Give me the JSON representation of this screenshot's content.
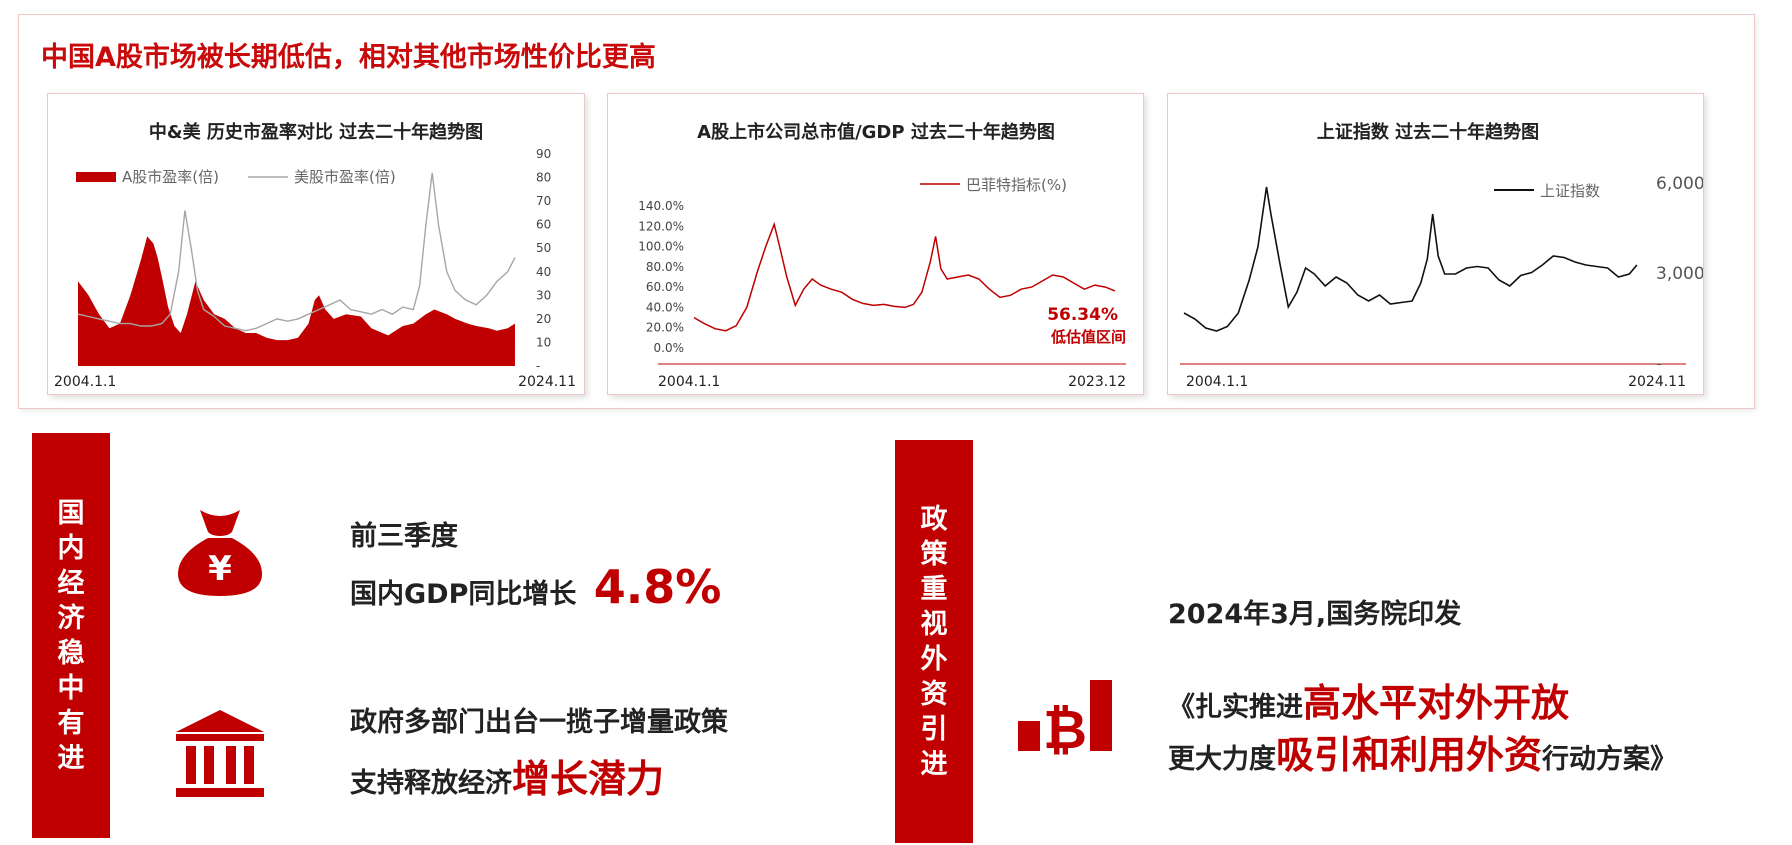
{
  "headline": "中国A股市场被长期低估，相对其他市场性价比更高",
  "colors": {
    "accent": "#c00000",
    "line_black": "#111111",
    "line_gray": "#a6a6a6"
  },
  "chart_data": [
    {
      "type": "area",
      "title": "中&美 历史市盈率对比 过去二十年趋势图",
      "xlabel": "",
      "ylabel": "",
      "x_start_label": "2004.1.1",
      "x_end_label": "2024.11",
      "y_ticks": [
        "90",
        "80",
        "70",
        "60",
        "50",
        "40",
        "30",
        "20",
        "10",
        "-"
      ],
      "ylim": [
        0,
        90
      ],
      "legend_position": "top-left",
      "series": [
        {
          "name": "A股市盈率(倍)",
          "style": "area",
          "color": "#c00000",
          "x": [
            2004.0,
            2004.5,
            2005.0,
            2005.5,
            2006.0,
            2006.5,
            2007.0,
            2007.3,
            2007.6,
            2007.8,
            2008.0,
            2008.3,
            2008.6,
            2008.9,
            2009.2,
            2009.6,
            2010.0,
            2010.5,
            2011.0,
            2011.5,
            2012.0,
            2012.5,
            2013.0,
            2013.5,
            2014.0,
            2014.5,
            2015.0,
            2015.3,
            2015.5,
            2015.8,
            2016.2,
            2016.8,
            2017.5,
            2018.0,
            2018.8,
            2019.5,
            2020.0,
            2020.6,
            2021.0,
            2021.6,
            2022.0,
            2022.6,
            2023.0,
            2023.6,
            2024.0,
            2024.5,
            2024.85
          ],
          "values": [
            36,
            30,
            22,
            16,
            18,
            30,
            45,
            55,
            52,
            46,
            38,
            25,
            17,
            14,
            22,
            36,
            28,
            22,
            20,
            16,
            14,
            14,
            12,
            11,
            11,
            12,
            18,
            28,
            30,
            24,
            20,
            22,
            21,
            16,
            13,
            17,
            18,
            22,
            24,
            22,
            20,
            18,
            17,
            16,
            15,
            16,
            18
          ]
        },
        {
          "name": "美股市盈率(倍)",
          "style": "line",
          "color": "#a6a6a6",
          "x": [
            2004.0,
            2004.5,
            2005.0,
            2005.5,
            2006.0,
            2006.5,
            2007.0,
            2007.5,
            2008.0,
            2008.4,
            2008.8,
            2009.1,
            2009.4,
            2009.7,
            2010.0,
            2010.5,
            2011.0,
            2011.5,
            2012.0,
            2012.5,
            2013.0,
            2013.5,
            2014.0,
            2014.5,
            2015.0,
            2015.5,
            2016.0,
            2016.5,
            2017.0,
            2017.5,
            2018.0,
            2018.5,
            2019.0,
            2019.5,
            2020.0,
            2020.3,
            2020.6,
            2020.9,
            2021.2,
            2021.6,
            2022.0,
            2022.5,
            2023.0,
            2023.5,
            2024.0,
            2024.5,
            2024.85
          ],
          "values": [
            22,
            21,
            20,
            19,
            18,
            18,
            17,
            17,
            18,
            22,
            40,
            66,
            50,
            32,
            24,
            21,
            17,
            16,
            15,
            16,
            18,
            20,
            19,
            20,
            22,
            24,
            26,
            28,
            24,
            23,
            22,
            24,
            22,
            25,
            24,
            34,
            60,
            82,
            60,
            40,
            32,
            28,
            26,
            30,
            36,
            40,
            46
          ]
        }
      ]
    },
    {
      "type": "line",
      "title": "A股上市公司总市值/GDP 过去二十年趋势图",
      "xlabel": "",
      "ylabel": "",
      "x_start_label": "2004.1.1",
      "x_end_label": "2023.12",
      "y_ticks": [
        "140.0%",
        "120.0%",
        "100.0%",
        "80.0%",
        "60.0%",
        "40.0%",
        "20.0%",
        "0.0%"
      ],
      "ylim": [
        0,
        140
      ],
      "legend_position": "top-right",
      "annotation": {
        "value": "56.34%",
        "text": "低估值区间"
      },
      "series": [
        {
          "name": "巴菲特指标(%)",
          "color": "#c00000",
          "x": [
            2004.0,
            2004.5,
            2005.0,
            2005.5,
            2006.0,
            2006.5,
            2007.0,
            2007.4,
            2007.8,
            2008.0,
            2008.4,
            2008.8,
            2009.2,
            2009.6,
            2010.0,
            2010.5,
            2011.0,
            2011.5,
            2012.0,
            2012.5,
            2013.0,
            2013.5,
            2014.0,
            2014.4,
            2014.8,
            2015.2,
            2015.45,
            2015.7,
            2016.0,
            2016.5,
            2017.0,
            2017.5,
            2018.0,
            2018.5,
            2019.0,
            2019.5,
            2020.0,
            2020.5,
            2021.0,
            2021.5,
            2022.0,
            2022.5,
            2023.0,
            2023.5,
            2023.95
          ],
          "values": [
            30,
            24,
            19,
            17,
            22,
            40,
            75,
            100,
            122,
            105,
            70,
            42,
            58,
            68,
            62,
            58,
            55,
            48,
            44,
            42,
            43,
            41,
            40,
            43,
            55,
            85,
            110,
            78,
            68,
            70,
            72,
            68,
            58,
            50,
            52,
            58,
            60,
            66,
            72,
            70,
            64,
            58,
            62,
            60,
            56.34
          ]
        }
      ]
    },
    {
      "type": "line",
      "title": "上证指数 过去二十年趋势图",
      "xlabel": "",
      "ylabel": "",
      "x_start_label": "2004.1.1",
      "x_end_label": "2024.11",
      "y_ticks": [
        "6,000",
        "3,000",
        "-"
      ],
      "ylim": [
        0,
        7000
      ],
      "legend_position": "top-right",
      "series": [
        {
          "name": "上证指数",
          "color": "#111111",
          "x": [
            2004.0,
            2004.5,
            2005.0,
            2005.5,
            2006.0,
            2006.5,
            2007.0,
            2007.4,
            2007.8,
            2008.0,
            2008.4,
            2008.8,
            2009.2,
            2009.6,
            2010.0,
            2010.5,
            2011.0,
            2011.5,
            2012.0,
            2012.5,
            2013.0,
            2013.5,
            2014.0,
            2014.5,
            2014.9,
            2015.2,
            2015.45,
            2015.7,
            2016.0,
            2016.5,
            2017.0,
            2017.5,
            2018.0,
            2018.5,
            2019.0,
            2019.5,
            2020.0,
            2020.5,
            2021.0,
            2021.5,
            2022.0,
            2022.5,
            2023.0,
            2023.5,
            2024.0,
            2024.5,
            2024.85
          ],
          "values": [
            1700,
            1500,
            1200,
            1100,
            1250,
            1700,
            2800,
            3900,
            5900,
            5000,
            3400,
            1900,
            2400,
            3200,
            3000,
            2600,
            2900,
            2700,
            2300,
            2100,
            2300,
            2000,
            2050,
            2100,
            2700,
            3500,
            5000,
            3600,
            3000,
            3000,
            3200,
            3250,
            3200,
            2800,
            2600,
            2950,
            3050,
            3300,
            3600,
            3550,
            3400,
            3300,
            3250,
            3200,
            2900,
            3000,
            3300
          ]
        }
      ]
    }
  ],
  "left_section": {
    "vertical_label": "国内经济稳中有进",
    "item1": {
      "line1": "前三季度",
      "line2": "国内GDP同比增长",
      "highlight": "4.8%"
    },
    "item2": {
      "line1": "政府多部门出台一揽子增量政策",
      "line2": "支持释放经济",
      "highlight": "增长潜力"
    }
  },
  "right_section": {
    "vertical_label": "政策重视外资引进",
    "date_line": "2024年3月,国务院印发",
    "title_open": "《扎实推进",
    "title_highlight1": "高水平对外开放",
    "title_line2_start": "更大力度",
    "title_highlight2": "吸引和利用外资",
    "title_end": "行动方案》"
  },
  "icons": {
    "money_bag": "money-bag-icon",
    "bank": "bank-building-icon",
    "bitcoin": "bitcoin-chart-icon"
  }
}
